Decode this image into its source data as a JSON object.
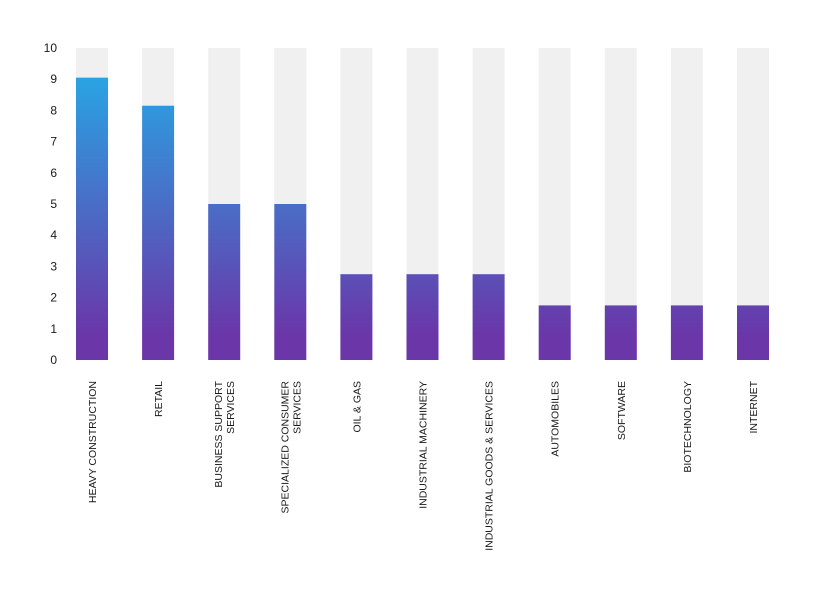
{
  "chart_data": {
    "type": "bar",
    "title": "",
    "xlabel": "",
    "ylabel": "",
    "ylim": [
      0,
      10
    ],
    "yticks": [
      0,
      1,
      2,
      3,
      4,
      5,
      6,
      7,
      8,
      9,
      10
    ],
    "grid": false,
    "categories": [
      [
        "HEAVY CONSTRUCTION"
      ],
      [
        "RETAIL"
      ],
      [
        "BUSINESS SUPPORT",
        "SERVICES"
      ],
      [
        "SPECIALIZED CONSUMER",
        "SERVICES"
      ],
      [
        "OIL & GAS"
      ],
      [
        "INDUSTRIAL MACHINERY"
      ],
      [
        "INDUSTRIAL GOODS & SERVICES"
      ],
      [
        "AUTOMOBILES"
      ],
      [
        "SOFTWARE"
      ],
      [
        "BIOTECHNOLOGY"
      ],
      [
        "INTERNET"
      ]
    ],
    "values": [
      9.05,
      8.15,
      5.0,
      5.0,
      2.75,
      2.75,
      2.75,
      1.75,
      1.75,
      1.75,
      1.75
    ],
    "background_bar_value": 10,
    "colors": {
      "bar_top": "#22b0ea",
      "bar_bottom": "#6a36a8",
      "track": "#f0f0f0",
      "text": "#1a1a1a"
    }
  }
}
